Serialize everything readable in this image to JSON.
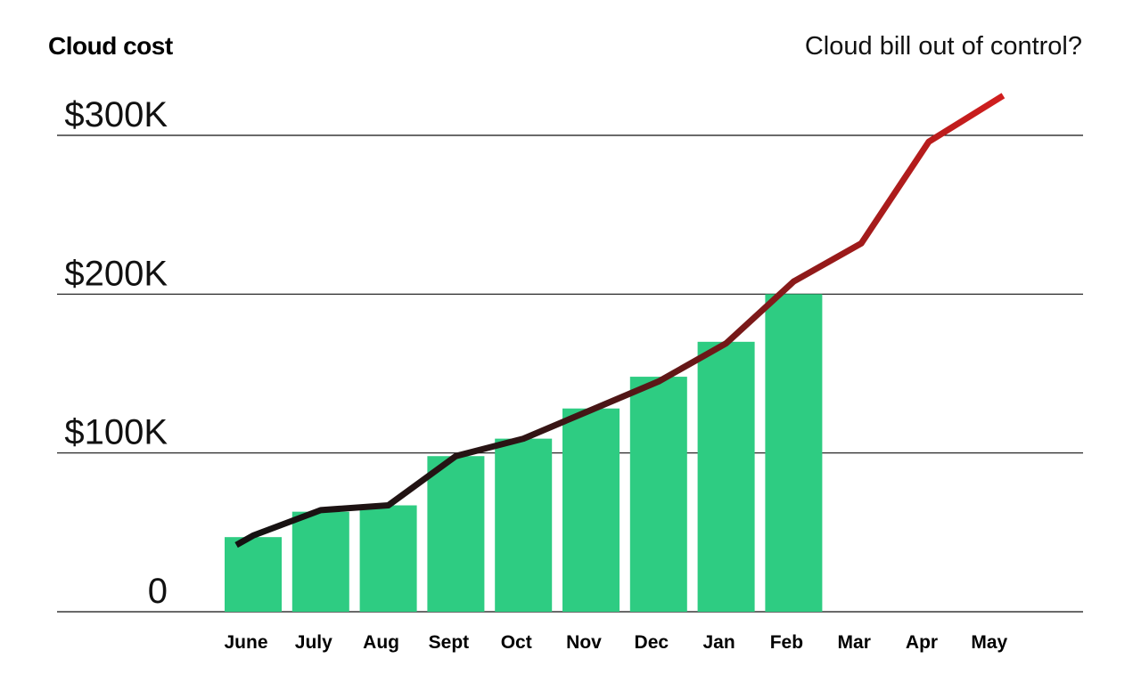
{
  "header": {
    "title": "Cloud cost",
    "subtitle": "Cloud bill out of control?"
  },
  "chart_data": {
    "type": "bar",
    "title": "Cloud cost",
    "subtitle": "Cloud bill out of control?",
    "categories": [
      "June",
      "July",
      "Aug",
      "Sept",
      "Oct",
      "Nov",
      "Dec",
      "Jan",
      "Feb",
      "Mar",
      "Apr",
      "May"
    ],
    "yticks": [
      {
        "value": 0,
        "label": "0"
      },
      {
        "value": 100000,
        "label": "$100K"
      },
      {
        "value": 200000,
        "label": "$200K"
      },
      {
        "value": 300000,
        "label": "$300K"
      }
    ],
    "ylim": [
      0,
      300000
    ],
    "grid": true,
    "series": [
      {
        "type": "bar",
        "color": "#2ecc82",
        "values": [
          47000,
          63000,
          67000,
          98000,
          109000,
          128000,
          148000,
          170000,
          200000,
          null,
          null,
          null
        ]
      },
      {
        "type": "line",
        "color_start": "#111111",
        "color_end": "#e81f1f",
        "x": [
          -0.25,
          0,
          1,
          2,
          3,
          4,
          5,
          6,
          7,
          8,
          9,
          10,
          11.1
        ],
        "values": [
          42000,
          48000,
          64000,
          67000,
          98000,
          109000,
          127000,
          145000,
          169000,
          208000,
          232000,
          296000,
          325000
        ]
      }
    ]
  }
}
